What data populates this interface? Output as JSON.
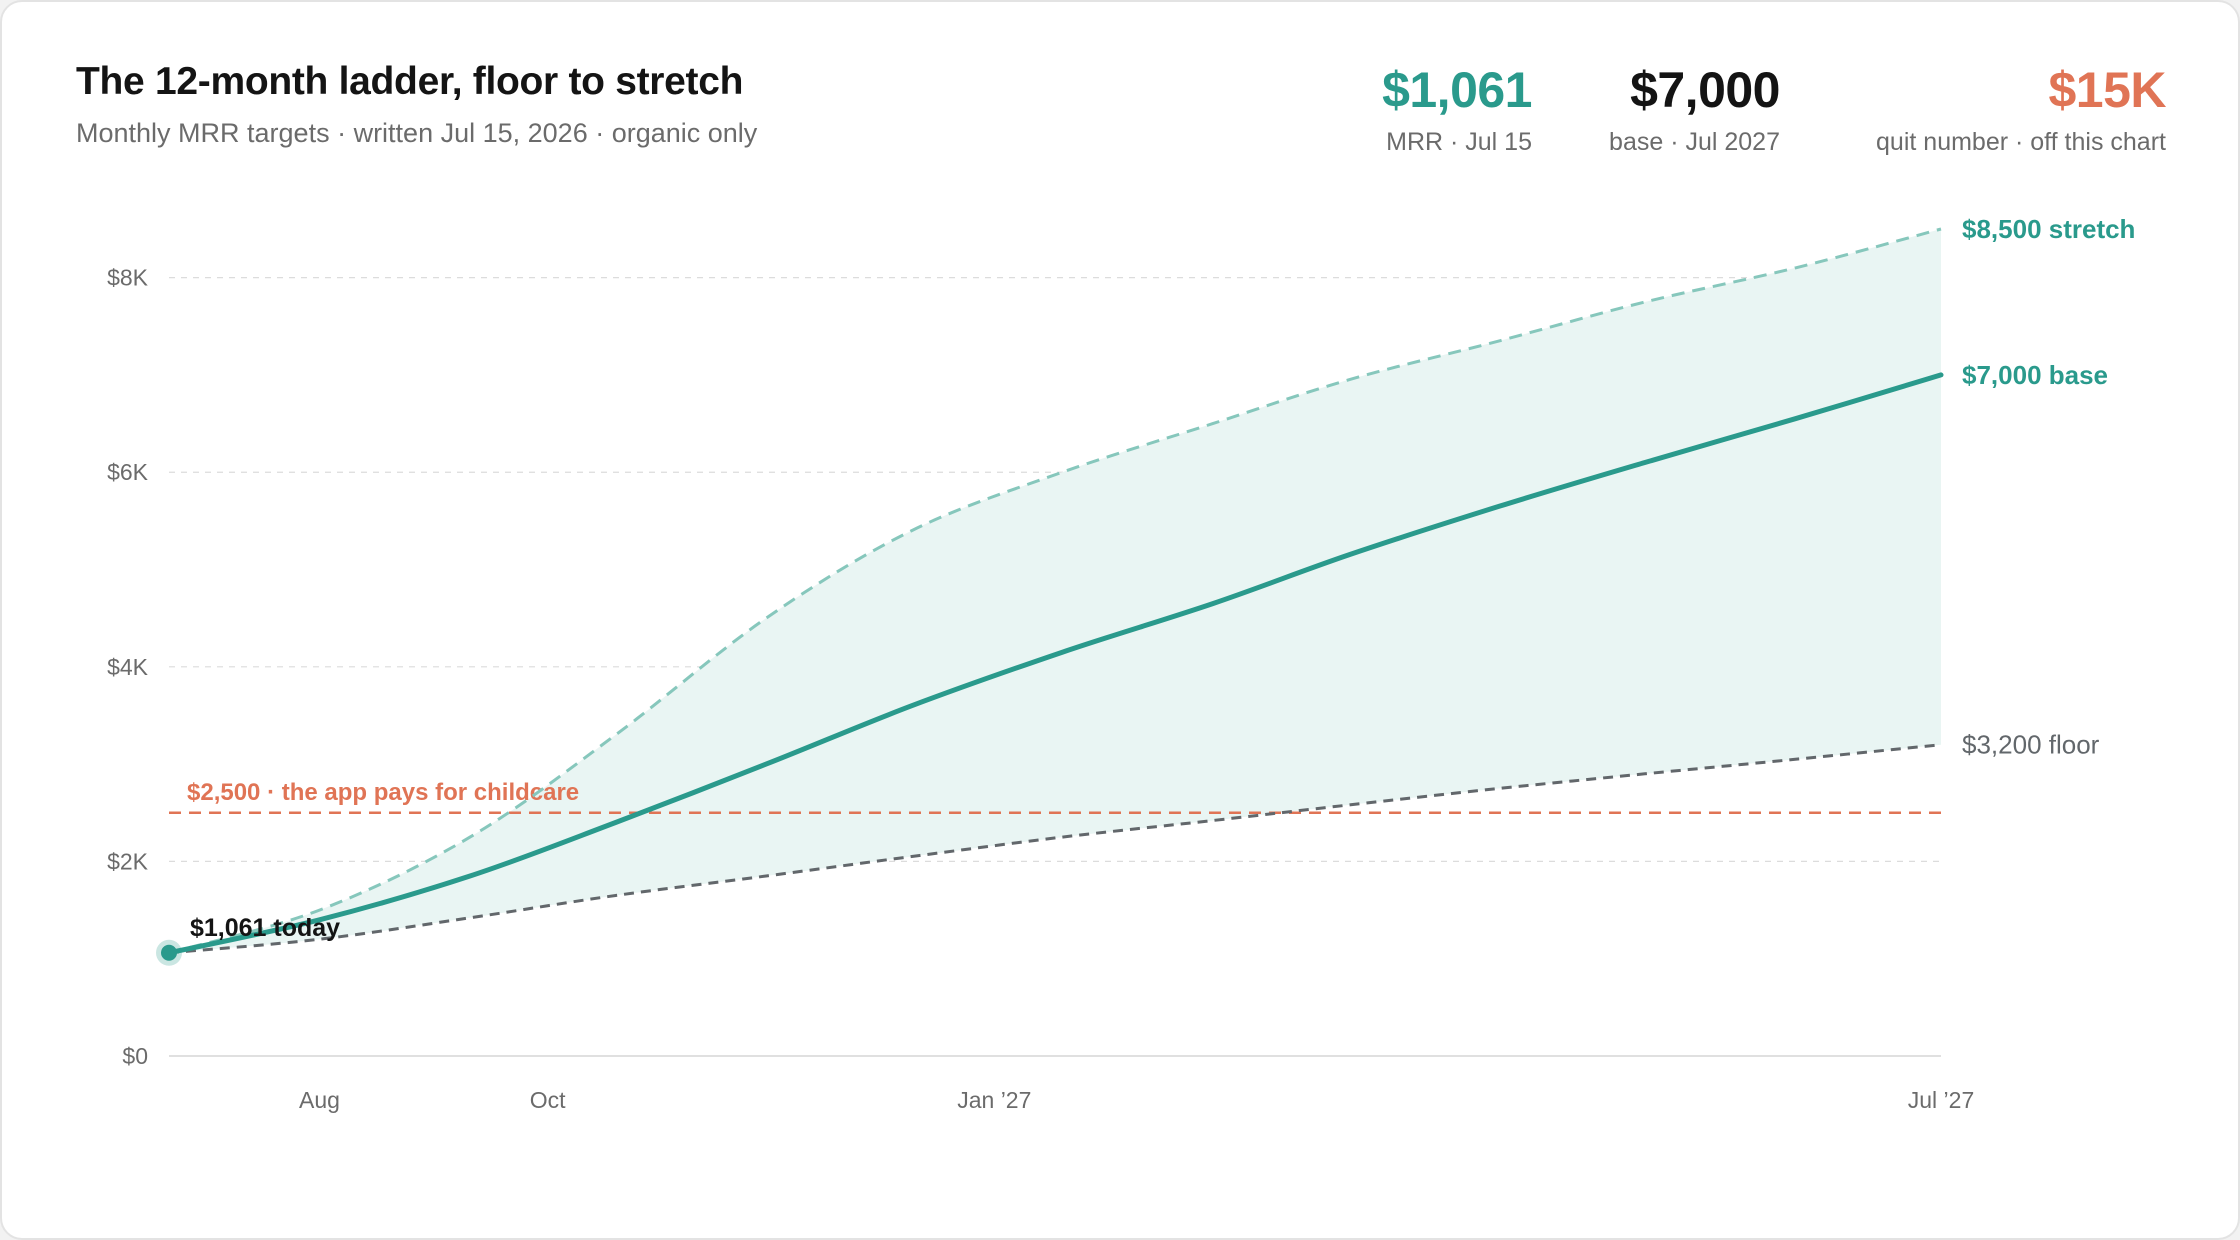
{
  "header": {
    "title": "The 12-month ladder, floor to stretch",
    "subtitle": "Monthly MRR targets · written Jul 15, 2026 · organic only"
  },
  "kpis": [
    {
      "value": "$1,061",
      "label": "MRR · Jul 15",
      "color": "#2a9a8c"
    },
    {
      "value": "$7,000",
      "label": "base · Jul 2027",
      "color": "#141414"
    },
    {
      "value": "$15K",
      "label": "quit number · off this chart",
      "color": "#e07455"
    }
  ],
  "colors": {
    "base": "#2a9a8c",
    "stretch": "#86c7bc",
    "floor": "#62676b",
    "band": "#e9f5f3",
    "threshold": "#e07455",
    "grid": "#dcdcdc",
    "axis_text": "#6b6b6b"
  },
  "chart_data": {
    "type": "line",
    "x_range": [
      "2026-07-15",
      "2027-07-15"
    ],
    "ylim": [
      0,
      8500
    ],
    "y_ticks": [
      {
        "value": 0,
        "label": "$0"
      },
      {
        "value": 2000,
        "label": "$2K"
      },
      {
        "value": 4000,
        "label": "$4K"
      },
      {
        "value": 6000,
        "label": "$6K"
      },
      {
        "value": 8000,
        "label": "$8K"
      }
    ],
    "x_ticks": [
      {
        "date": "2026-08-15",
        "label": "Aug"
      },
      {
        "date": "2026-10-01",
        "label": "Oct"
      },
      {
        "date": "2027-01-01",
        "label": "Jan ’27"
      },
      {
        "date": "2027-07-15",
        "label": "Jul ’27"
      }
    ],
    "grid": true,
    "series": [
      {
        "key": "stretch",
        "name": "stretch",
        "end_label": "$8,500 stretch",
        "style": "dashed",
        "points": [
          {
            "x": "2026-07-15",
            "y": 1061
          },
          {
            "x": "2026-08-15",
            "y": 1500
          },
          {
            "x": "2026-09-15",
            "y": 2250
          },
          {
            "x": "2026-10-15",
            "y": 3300
          },
          {
            "x": "2026-11-15",
            "y": 4500
          },
          {
            "x": "2026-12-15",
            "y": 5400
          },
          {
            "x": "2027-01-15",
            "y": 6000
          },
          {
            "x": "2027-02-15",
            "y": 6500
          },
          {
            "x": "2027-03-15",
            "y": 6950
          },
          {
            "x": "2027-04-15",
            "y": 7350
          },
          {
            "x": "2027-05-15",
            "y": 7750
          },
          {
            "x": "2027-06-15",
            "y": 8100
          },
          {
            "x": "2027-07-15",
            "y": 8500
          }
        ]
      },
      {
        "key": "base",
        "name": "base",
        "end_label": "$7,000 base",
        "style": "solid",
        "points": [
          {
            "x": "2026-07-15",
            "y": 1061
          },
          {
            "x": "2026-08-15",
            "y": 1400
          },
          {
            "x": "2026-09-15",
            "y": 1850
          },
          {
            "x": "2026-10-15",
            "y": 2400
          },
          {
            "x": "2026-11-15",
            "y": 3000
          },
          {
            "x": "2026-12-15",
            "y": 3600
          },
          {
            "x": "2027-01-15",
            "y": 4150
          },
          {
            "x": "2027-02-15",
            "y": 4650
          },
          {
            "x": "2027-03-15",
            "y": 5150
          },
          {
            "x": "2027-04-15",
            "y": 5650
          },
          {
            "x": "2027-05-15",
            "y": 6100
          },
          {
            "x": "2027-06-15",
            "y": 6550
          },
          {
            "x": "2027-07-15",
            "y": 7000
          }
        ]
      },
      {
        "key": "floor",
        "name": "floor",
        "end_label": "$3,200 floor",
        "style": "dashed",
        "points": [
          {
            "x": "2026-07-15",
            "y": 1061
          },
          {
            "x": "2026-08-15",
            "y": 1200
          },
          {
            "x": "2026-09-15",
            "y": 1420
          },
          {
            "x": "2026-10-15",
            "y": 1650
          },
          {
            "x": "2026-11-15",
            "y": 1850
          },
          {
            "x": "2026-12-15",
            "y": 2050
          },
          {
            "x": "2027-01-15",
            "y": 2250
          },
          {
            "x": "2027-02-15",
            "y": 2420
          },
          {
            "x": "2027-03-15",
            "y": 2580
          },
          {
            "x": "2027-04-15",
            "y": 2750
          },
          {
            "x": "2027-05-15",
            "y": 2900
          },
          {
            "x": "2027-06-15",
            "y": 3050
          },
          {
            "x": "2027-07-15",
            "y": 3200
          }
        ]
      }
    ],
    "reference_lines": [
      {
        "y": 2500,
        "label": "$2,500 · the app pays for childcare"
      }
    ],
    "annotations": [
      {
        "x": "2026-07-15",
        "y": 1061,
        "label": "$1,061 today"
      }
    ]
  }
}
